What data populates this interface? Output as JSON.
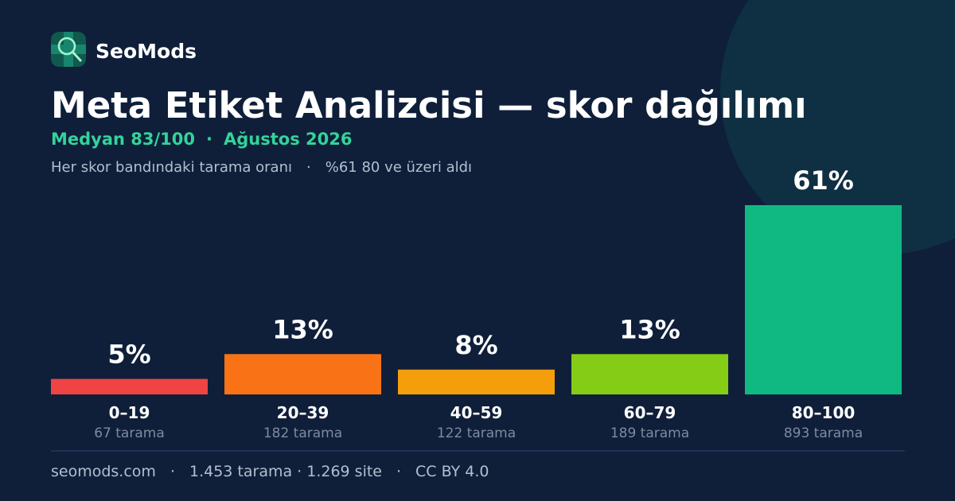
{
  "brand": "SeoMods",
  "chart_data": {
    "type": "bar",
    "title": "Meta Etiket Analizcisi — skor dağılımı",
    "subtitle": [
      "Medyan 83/100",
      "Ağustos 2026"
    ],
    "subtitle_separator": "·",
    "description": [
      "Her skor bandındaki tarama oranı",
      "%61 80 ve üzeri aldı"
    ],
    "categories": [
      "0–19",
      "20–39",
      "40–59",
      "60–79",
      "80–100"
    ],
    "counts": [
      "67 tarama",
      "182 tarama",
      "122 tarama",
      "189 tarama",
      "893 tarama"
    ],
    "values": [
      5,
      13,
      8,
      13,
      61
    ],
    "value_labels": [
      "5%",
      "13%",
      "8%",
      "13%",
      "61%"
    ],
    "colors": [
      "#ef4444",
      "#f97316",
      "#f59e0b",
      "#84cc16",
      "#10b981"
    ]
  },
  "footer": [
    "seomods.com",
    "1.453 tarama · 1.269 site",
    "CC BY 4.0"
  ],
  "footer_separator": "·"
}
